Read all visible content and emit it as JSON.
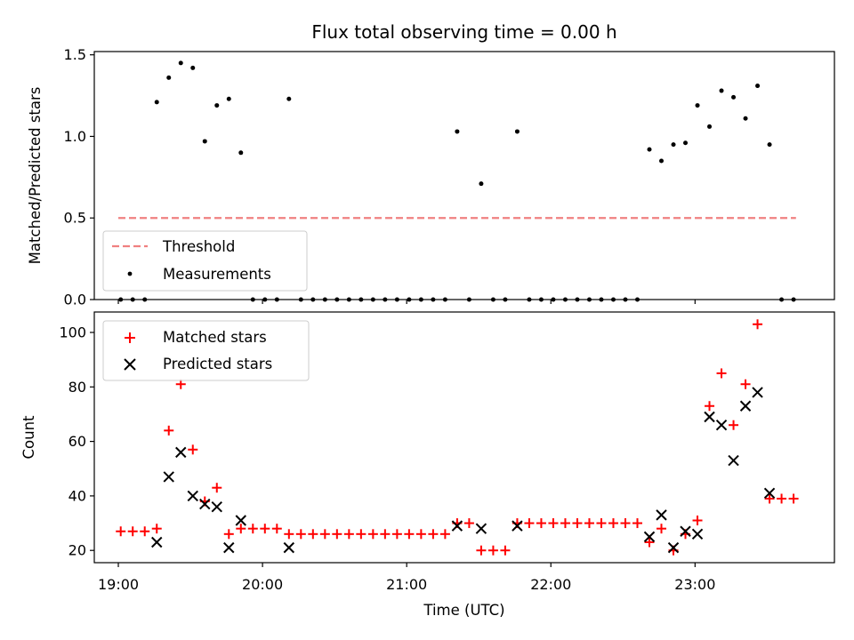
{
  "figure": {
    "title": "Flux total observing time = 0.00 h"
  },
  "chart_data": [
    {
      "type": "scatter",
      "panel": "top",
      "ylabel": "Matched/Predicted stars",
      "xlabel": "",
      "xlim": [
        "18:50",
        "23:58"
      ],
      "ylim": [
        0,
        1.52
      ],
      "yticks": [
        0.0,
        0.5,
        1.0,
        1.5
      ],
      "ytick_labels": [
        "0.0",
        "0.5",
        "1.0",
        "1.5"
      ],
      "xticks": [
        "19:00",
        "20:00",
        "21:00",
        "22:00",
        "23:00"
      ],
      "legend": {
        "placement": "lower-left",
        "entries": [
          "Threshold",
          "Measurements"
        ]
      },
      "threshold": {
        "name": "Threshold",
        "value": 0.5,
        "x_range": [
          "19:00",
          "23:42"
        ],
        "color": "#f08080",
        "style": "dashed"
      },
      "series": [
        {
          "name": "Measurements",
          "color": "#000000",
          "x": [
            "19:01",
            "19:06",
            "19:11",
            "19:16",
            "19:21",
            "19:26",
            "19:31",
            "19:36",
            "19:41",
            "19:46",
            "19:51",
            "19:56",
            "20:01",
            "20:06",
            "20:11",
            "20:16",
            "20:21",
            "20:26",
            "20:31",
            "20:36",
            "20:41",
            "20:46",
            "20:51",
            "20:56",
            "21:01",
            "21:06",
            "21:11",
            "21:16",
            "21:21",
            "21:26",
            "21:31",
            "21:36",
            "21:41",
            "21:46",
            "21:51",
            "21:56",
            "22:01",
            "22:06",
            "22:11",
            "22:16",
            "22:21",
            "22:26",
            "22:31",
            "22:36",
            "22:41",
            "22:46",
            "22:51",
            "22:56",
            "23:01",
            "23:06",
            "23:11",
            "23:16",
            "23:21",
            "23:26",
            "23:31",
            "23:36",
            "23:41"
          ],
          "y": [
            0.0,
            0.0,
            0.0,
            1.21,
            1.36,
            1.45,
            1.42,
            0.97,
            1.19,
            1.23,
            0.9,
            0.0,
            0.0,
            0.0,
            1.23,
            0.0,
            0.0,
            0.0,
            0.0,
            0.0,
            0.0,
            0.0,
            0.0,
            0.0,
            0.0,
            0.0,
            0.0,
            0.0,
            1.03,
            0.0,
            0.71,
            0.0,
            0.0,
            1.03,
            0.0,
            0.0,
            0.0,
            0.0,
            0.0,
            0.0,
            0.0,
            0.0,
            0.0,
            0.0,
            0.92,
            0.85,
            0.95,
            0.96,
            1.19,
            1.06,
            1.28,
            1.24,
            1.11,
            1.31,
            0.95,
            0.0,
            0.0
          ]
        }
      ]
    },
    {
      "type": "scatter",
      "panel": "bottom",
      "ylabel": "Count",
      "xlabel": "Time (UTC)",
      "xlim": [
        "18:50",
        "23:58"
      ],
      "ylim": [
        15.5,
        107.5
      ],
      "yticks": [
        20,
        40,
        60,
        80,
        100
      ],
      "ytick_labels": [
        "20",
        "40",
        "60",
        "80",
        "100"
      ],
      "xticks": [
        "19:00",
        "20:00",
        "21:00",
        "22:00",
        "23:00"
      ],
      "legend": {
        "placement": "top-left",
        "entries": [
          "Matched stars",
          "Predicted stars"
        ]
      },
      "series": [
        {
          "name": "Matched stars",
          "marker": "plus",
          "color": "#ff0000",
          "x": [
            "19:01",
            "19:06",
            "19:11",
            "19:16",
            "19:21",
            "19:26",
            "19:31",
            "19:36",
            "19:41",
            "19:46",
            "19:51",
            "19:56",
            "20:01",
            "20:06",
            "20:11",
            "20:16",
            "20:21",
            "20:26",
            "20:31",
            "20:36",
            "20:41",
            "20:46",
            "20:51",
            "20:56",
            "21:01",
            "21:06",
            "21:11",
            "21:16",
            "21:21",
            "21:26",
            "21:31",
            "21:36",
            "21:41",
            "21:46",
            "21:51",
            "21:56",
            "22:01",
            "22:06",
            "22:11",
            "22:16",
            "22:21",
            "22:26",
            "22:31",
            "22:36",
            "22:41",
            "22:46",
            "22:51",
            "22:56",
            "23:01",
            "23:06",
            "23:11",
            "23:16",
            "23:21",
            "23:26",
            "23:31",
            "23:36",
            "23:41"
          ],
          "y": [
            27,
            27,
            27,
            28,
            64,
            81,
            57,
            38,
            43,
            26,
            28,
            28,
            28,
            28,
            26,
            26,
            26,
            26,
            26,
            26,
            26,
            26,
            26,
            26,
            26,
            26,
            26,
            26,
            30,
            30,
            20,
            20,
            20,
            30,
            30,
            30,
            30,
            30,
            30,
            30,
            30,
            30,
            30,
            30,
            23,
            28,
            20,
            26,
            31,
            73,
            85,
            66,
            81,
            103,
            39,
            39,
            39
          ]
        },
        {
          "name": "Predicted stars",
          "marker": "x",
          "color": "#000000",
          "x": [
            "19:16",
            "19:21",
            "19:26",
            "19:31",
            "19:36",
            "19:41",
            "19:46",
            "19:51",
            "20:11",
            "21:21",
            "21:31",
            "21:46",
            "22:41",
            "22:46",
            "22:51",
            "22:56",
            "23:01",
            "23:06",
            "23:11",
            "23:16",
            "23:21",
            "23:26",
            "23:31"
          ],
          "y": [
            23,
            47,
            56,
            40,
            37,
            36,
            21,
            31,
            21,
            29,
            28,
            29,
            25,
            33,
            21,
            27,
            26,
            69,
            66,
            53,
            73,
            78,
            41
          ]
        }
      ]
    }
  ]
}
